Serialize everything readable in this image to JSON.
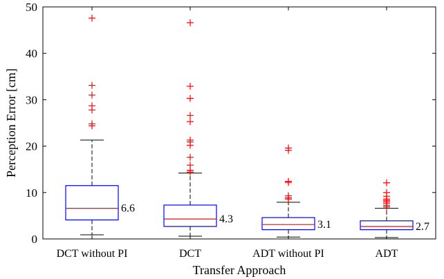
{
  "chart_data": {
    "type": "boxplot",
    "title": "",
    "xlabel": "Transfer Approach",
    "ylabel": "Perception Error [cm]",
    "ylim": [
      0,
      50
    ],
    "yticks": [
      0,
      10,
      20,
      30,
      40,
      50
    ],
    "grid": false,
    "legend": "none",
    "colors": {
      "box": "#0000ff",
      "median": "#ff0000",
      "outlier": "#ff0000",
      "whisker": "#000000",
      "axis": "#000000"
    },
    "categories": [
      "DCT without PI",
      "DCT",
      "ADT without PI",
      "ADT"
    ],
    "boxes": [
      {
        "category": "DCT without PI",
        "whisker_low": 0.9,
        "q1": 4.1,
        "median": 6.6,
        "q3": 11.5,
        "whisker_high": 21.3,
        "median_label": "6.6",
        "outliers": [
          47.6,
          33.1,
          31.0,
          28.7,
          27.8,
          24.8,
          24.4
        ]
      },
      {
        "category": "DCT",
        "whisker_low": 0.6,
        "q1": 2.7,
        "median": 4.3,
        "q3": 7.3,
        "whisker_high": 14.2,
        "median_label": "4.3",
        "outliers": [
          46.6,
          32.9,
          30.3,
          26.6,
          25.3,
          21.3,
          20.9,
          20.2,
          17.6,
          15.9,
          14.8,
          14.4
        ]
      },
      {
        "category": "ADT without PI",
        "whisker_low": 0.4,
        "q1": 2.0,
        "median": 3.1,
        "q3": 4.6,
        "whisker_high": 7.9,
        "median_label": "3.1",
        "outliers": [
          19.6,
          19.1,
          12.4,
          12.2,
          9.3,
          8.9,
          8.6
        ]
      },
      {
        "category": "ADT",
        "whisker_low": 0.3,
        "q1": 2.0,
        "median": 2.7,
        "q3": 3.9,
        "whisker_high": 6.6,
        "median_label": "2.7",
        "outliers": [
          12.1,
          10.0,
          9.2,
          8.6,
          8.3,
          8.0,
          7.6,
          7.2,
          6.9
        ]
      }
    ]
  }
}
